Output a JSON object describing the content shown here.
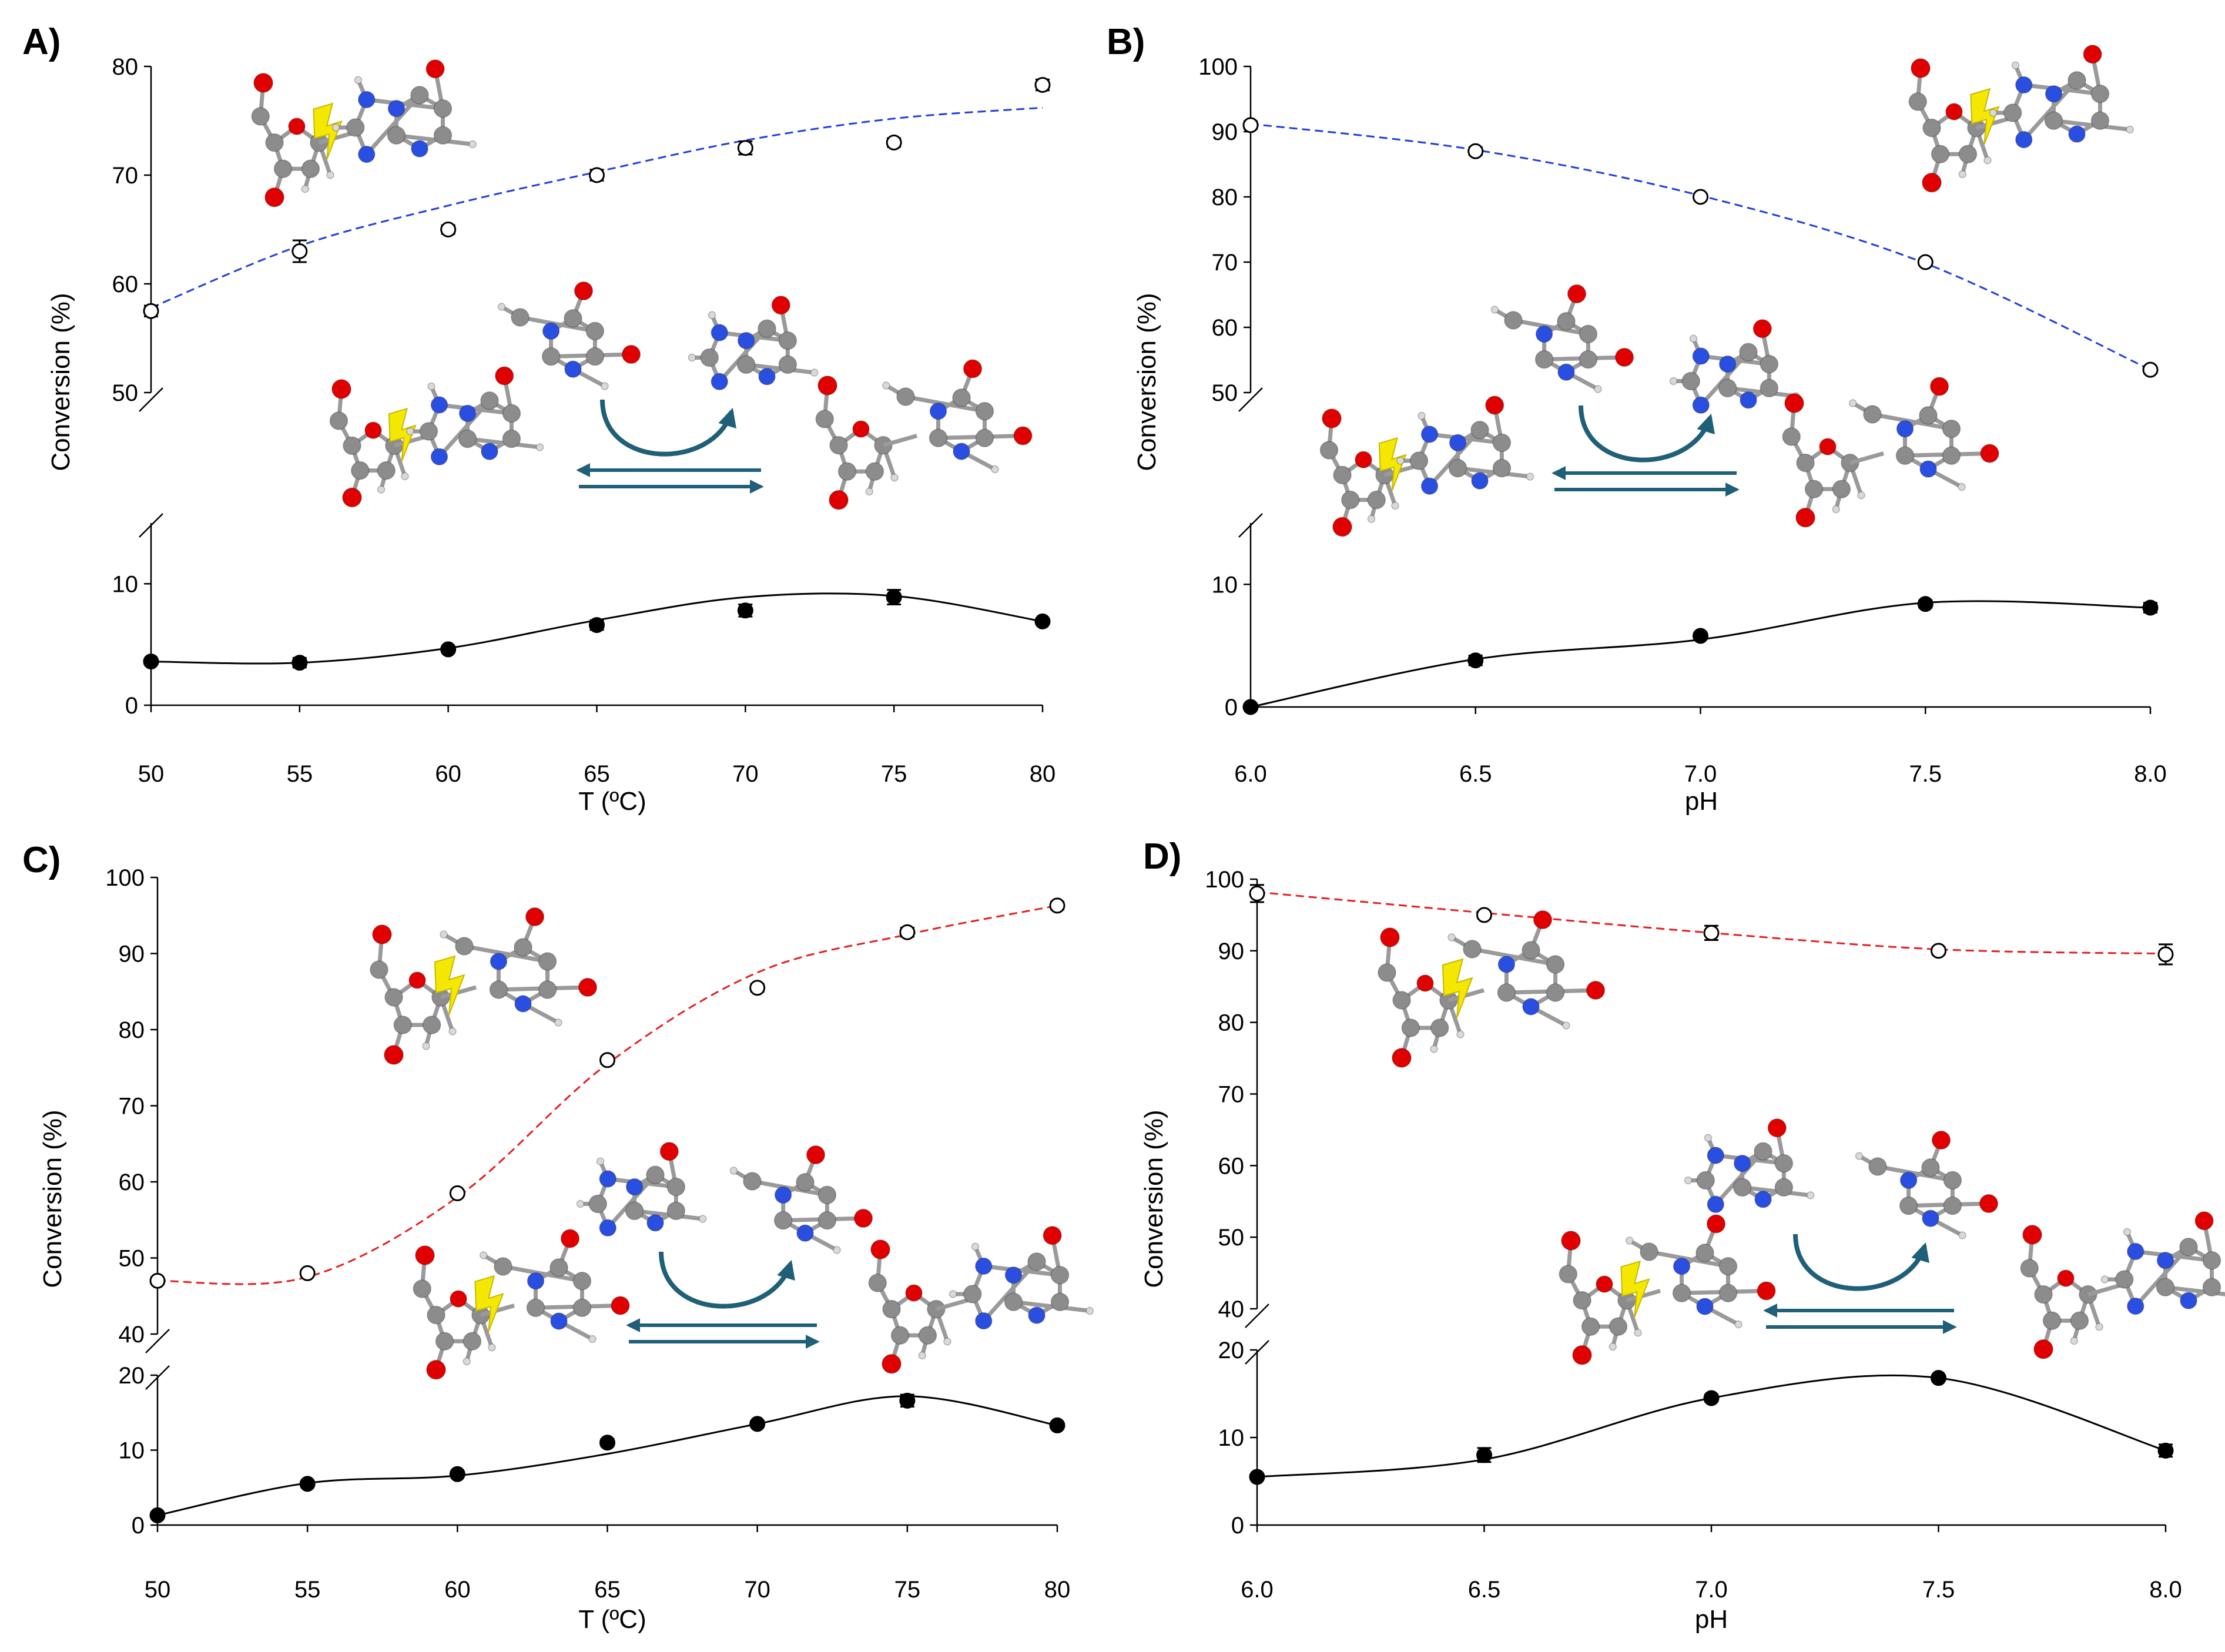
{
  "colors": {
    "blue_fit": "#1f3fe0",
    "red_fit": "#e81e1e",
    "black": "#000000",
    "arrow": "#1f5f78",
    "carbon": "#8c8c8c",
    "oxygen": "#e00000",
    "nitrogen": "#2a4fe0",
    "hydrogen": "#d9d9d9",
    "bolt": "#f5e800"
  },
  "chart_data": [
    {
      "id": "A",
      "label": "A)",
      "type": "scatter",
      "xlabel": "T (ºC)",
      "ylabel": "Conversion (%)",
      "xlim": [
        50,
        80
      ],
      "x_ticks": [
        "50",
        "55",
        "60",
        "65",
        "70",
        "75",
        "80"
      ],
      "broken_axis": true,
      "upper": {
        "ylim": [
          50,
          80
        ],
        "y_ticks": [
          "50",
          "60",
          "70",
          "80"
        ]
      },
      "lower": {
        "ylim": [
          0,
          15
        ],
        "y_ticks": [
          "0",
          "10"
        ]
      },
      "series": [
        {
          "name": "open circles",
          "marker": "open",
          "segment": "upper",
          "fit": "blue-dashed",
          "x": [
            50,
            55,
            60,
            65,
            70,
            75,
            80
          ],
          "y": [
            57.5,
            63.0,
            65.0,
            70.0,
            72.5,
            73.0,
            78.3
          ],
          "err": [
            0.5,
            1.0,
            0.4,
            0.5,
            0.6,
            0.4,
            0.5
          ],
          "fit_y": [
            57.8,
            63.5,
            67.2,
            70.3,
            73.2,
            75.2,
            76.2
          ]
        },
        {
          "name": "filled circles",
          "marker": "filled",
          "segment": "lower",
          "fit": "black-solid",
          "x": [
            50,
            55,
            60,
            65,
            70,
            75,
            80
          ],
          "y": [
            3.6,
            3.5,
            4.6,
            6.6,
            7.8,
            8.9,
            6.9
          ],
          "err": [
            0.2,
            0.4,
            0.2,
            0.4,
            0.5,
            0.6,
            0.2
          ],
          "fit_y": [
            3.6,
            3.5,
            4.7,
            7.0,
            8.9,
            9.0,
            6.9
          ]
        }
      ]
    },
    {
      "id": "B",
      "label": "B)",
      "type": "scatter",
      "xlabel": "pH",
      "ylabel": "Conversion (%)",
      "xlim": [
        6.0,
        8.0
      ],
      "x_ticks": [
        "6.0",
        "6.5",
        "7.0",
        "7.5",
        "8.0"
      ],
      "broken_axis": true,
      "upper": {
        "ylim": [
          50,
          100
        ],
        "y_ticks": [
          "50",
          "60",
          "70",
          "80",
          "90",
          "100"
        ]
      },
      "lower": {
        "ylim": [
          0,
          15
        ],
        "y_ticks": [
          "0",
          "10"
        ]
      },
      "series": [
        {
          "name": "open circles",
          "marker": "open",
          "segment": "upper",
          "fit": "blue-dashed",
          "x": [
            6.0,
            6.5,
            7.0,
            7.5,
            8.0
          ],
          "y": [
            91.0,
            87.0,
            80.0,
            70.0,
            53.5
          ],
          "err": [
            0.6,
            0.6,
            0.5,
            0.5,
            0.5
          ],
          "fit_y": [
            91.2,
            87.2,
            80.2,
            69.8,
            53.5
          ]
        },
        {
          "name": "filled circles",
          "marker": "filled",
          "segment": "lower",
          "fit": "black-solid",
          "x": [
            6.0,
            6.5,
            7.0,
            7.5,
            8.0
          ],
          "y": [
            0.0,
            3.8,
            5.8,
            8.4,
            8.1
          ],
          "err": [
            0.1,
            0.4,
            0.2,
            0.3,
            0.4
          ],
          "fit_y": [
            0.0,
            3.9,
            5.5,
            8.5,
            8.1
          ]
        }
      ]
    },
    {
      "id": "C",
      "label": "C)",
      "type": "scatter",
      "xlabel": "T (ºC)",
      "ylabel": "Conversion (%)",
      "xlim": [
        50,
        80
      ],
      "x_ticks": [
        "50",
        "55",
        "60",
        "65",
        "70",
        "75",
        "80"
      ],
      "broken_axis": true,
      "upper": {
        "ylim": [
          40,
          100
        ],
        "y_ticks": [
          "40",
          "50",
          "60",
          "70",
          "80",
          "90",
          "100"
        ]
      },
      "lower": {
        "ylim": [
          0,
          20
        ],
        "y_ticks": [
          "0",
          "10",
          "20"
        ]
      },
      "series": [
        {
          "name": "open circles",
          "marker": "open",
          "segment": "upper",
          "fit": "red-dashed",
          "x": [
            50,
            55,
            60,
            65,
            70,
            75,
            80
          ],
          "y": [
            47.0,
            48.0,
            58.5,
            76.0,
            85.5,
            92.8,
            96.3
          ],
          "err": [
            0.4,
            0.4,
            0.4,
            0.5,
            0.5,
            0.6,
            0.5
          ],
          "fit_y": [
            47.0,
            47.5,
            58.0,
            75.5,
            87.5,
            92.5,
            96.3
          ]
        },
        {
          "name": "filled circles",
          "marker": "filled",
          "segment": "lower",
          "fit": "black-solid",
          "x": [
            50,
            55,
            60,
            65,
            70,
            75,
            80
          ],
          "y": [
            1.3,
            5.5,
            6.8,
            11.0,
            13.5,
            16.6,
            13.3
          ],
          "err": [
            0.3,
            0.3,
            0.3,
            0.5,
            0.4,
            0.8,
            0.3
          ],
          "fit_y": [
            1.3,
            5.6,
            6.6,
            9.5,
            13.5,
            17.2,
            13.3
          ]
        }
      ]
    },
    {
      "id": "D",
      "label": "D)",
      "type": "scatter",
      "xlabel": "pH",
      "ylabel": "Conversion (%)",
      "xlim": [
        6.0,
        8.0
      ],
      "x_ticks": [
        "6.0",
        "6.5",
        "7.0",
        "7.5",
        "8.0"
      ],
      "broken_axis": true,
      "upper": {
        "ylim": [
          40,
          100
        ],
        "y_ticks": [
          "40",
          "50",
          "60",
          "70",
          "80",
          "90",
          "100"
        ]
      },
      "lower": {
        "ylim": [
          0,
          20
        ],
        "y_ticks": [
          "0",
          "10",
          "20"
        ]
      },
      "series": [
        {
          "name": "open circles",
          "marker": "open",
          "segment": "upper",
          "fit": "red-dashed",
          "x": [
            6.0,
            6.5,
            7.0,
            7.5,
            8.0
          ],
          "y": [
            98.0,
            95.0,
            92.5,
            90.0,
            89.5
          ],
          "err": [
            1.2,
            0.5,
            1.0,
            0.5,
            1.4
          ],
          "fit_y": [
            98.2,
            95.3,
            92.5,
            90.2,
            89.6
          ]
        },
        {
          "name": "filled circles",
          "marker": "filled",
          "segment": "lower",
          "fit": "black-solid",
          "x": [
            6.0,
            6.5,
            7.0,
            7.5,
            8.0
          ],
          "y": [
            5.5,
            8.0,
            14.5,
            16.8,
            8.5
          ],
          "err": [
            0.3,
            0.8,
            0.4,
            0.3,
            0.7
          ],
          "fit_y": [
            5.5,
            7.5,
            14.5,
            16.8,
            8.5
          ]
        }
      ]
    }
  ]
}
